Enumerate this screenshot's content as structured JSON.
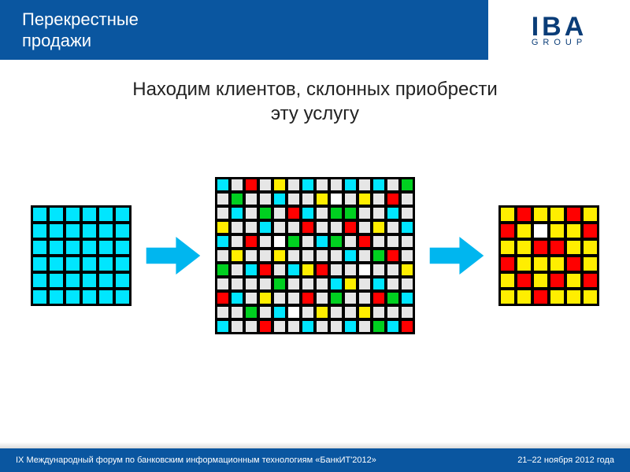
{
  "colors": {
    "header_bg": "#0a56a0",
    "footer_bg": "#0a56a0",
    "logo_color": "#0a3d78",
    "arrow_fill": "#00b6ef",
    "cells": {
      "C": "#00e6ff",
      "G": "#00d020",
      "Y": "#ffee00",
      "R": "#ff0000",
      "W": "#ffffff",
      "L": "#e6e6e6"
    }
  },
  "header": {
    "title_line1": "Перекрестные",
    "title_line2": "продажи"
  },
  "logo": {
    "main": "IBA",
    "sub": "GROUP"
  },
  "subtitle": {
    "line1": "Находим клиентов, склонных приобрести",
    "line2": "эту услугу"
  },
  "footer": {
    "left": "IX Международный форум по банковским информационным технологиям «БанкИТ'2012»",
    "right": "21–22 ноября 2012 года"
  },
  "grids": {
    "left": {
      "cols": 6,
      "cells": [
        "C",
        "C",
        "C",
        "C",
        "C",
        "C",
        "C",
        "C",
        "C",
        "C",
        "C",
        "C",
        "C",
        "C",
        "C",
        "C",
        "C",
        "C",
        "C",
        "C",
        "C",
        "C",
        "C",
        "C",
        "C",
        "C",
        "C",
        "C",
        "C",
        "C",
        "C",
        "C",
        "C",
        "C",
        "C",
        "C"
      ]
    },
    "center": {
      "cols": 14,
      "cells": [
        "C",
        "L",
        "R",
        "L",
        "Y",
        "L",
        "C",
        "L",
        "L",
        "C",
        "L",
        "C",
        "L",
        "G",
        "L",
        "G",
        "L",
        "L",
        "C",
        "L",
        "L",
        "Y",
        "W",
        "L",
        "Y",
        "L",
        "R",
        "L",
        "L",
        "C",
        "L",
        "G",
        "L",
        "R",
        "C",
        "L",
        "G",
        "G",
        "L",
        "L",
        "C",
        "L",
        "Y",
        "L",
        "L",
        "C",
        "L",
        "L",
        "R",
        "L",
        "L",
        "R",
        "L",
        "Y",
        "L",
        "C",
        "C",
        "L",
        "R",
        "L",
        "W",
        "G",
        "L",
        "C",
        "G",
        "L",
        "R",
        "L",
        "L",
        "L",
        "L",
        "Y",
        "L",
        "L",
        "Y",
        "L",
        "L",
        "L",
        "L",
        "C",
        "L",
        "G",
        "R",
        "L",
        "G",
        "L",
        "C",
        "R",
        "L",
        "C",
        "Y",
        "R",
        "L",
        "L",
        "W",
        "L",
        "L",
        "Y",
        "L",
        "L",
        "L",
        "L",
        "G",
        "L",
        "L",
        "L",
        "C",
        "Y",
        "L",
        "C",
        "L",
        "L",
        "R",
        "C",
        "L",
        "Y",
        "L",
        "L",
        "R",
        "L",
        "G",
        "L",
        "L",
        "R",
        "G",
        "C",
        "L",
        "L",
        "G",
        "L",
        "C",
        "W",
        "L",
        "Y",
        "L",
        "L",
        "Y",
        "L",
        "L",
        "L",
        "C",
        "L",
        "L",
        "R",
        "L",
        "L",
        "C",
        "L",
        "L",
        "C",
        "L",
        "G",
        "C",
        "R"
      ]
    },
    "right": {
      "cols": 6,
      "cells": [
        "Y",
        "R",
        "Y",
        "Y",
        "R",
        "Y",
        "R",
        "Y",
        "W",
        "Y",
        "Y",
        "R",
        "Y",
        "Y",
        "R",
        "R",
        "Y",
        "Y",
        "R",
        "Y",
        "Y",
        "Y",
        "R",
        "Y",
        "Y",
        "R",
        "Y",
        "R",
        "Y",
        "R",
        "Y",
        "Y",
        "R",
        "Y",
        "Y",
        "Y"
      ]
    }
  }
}
